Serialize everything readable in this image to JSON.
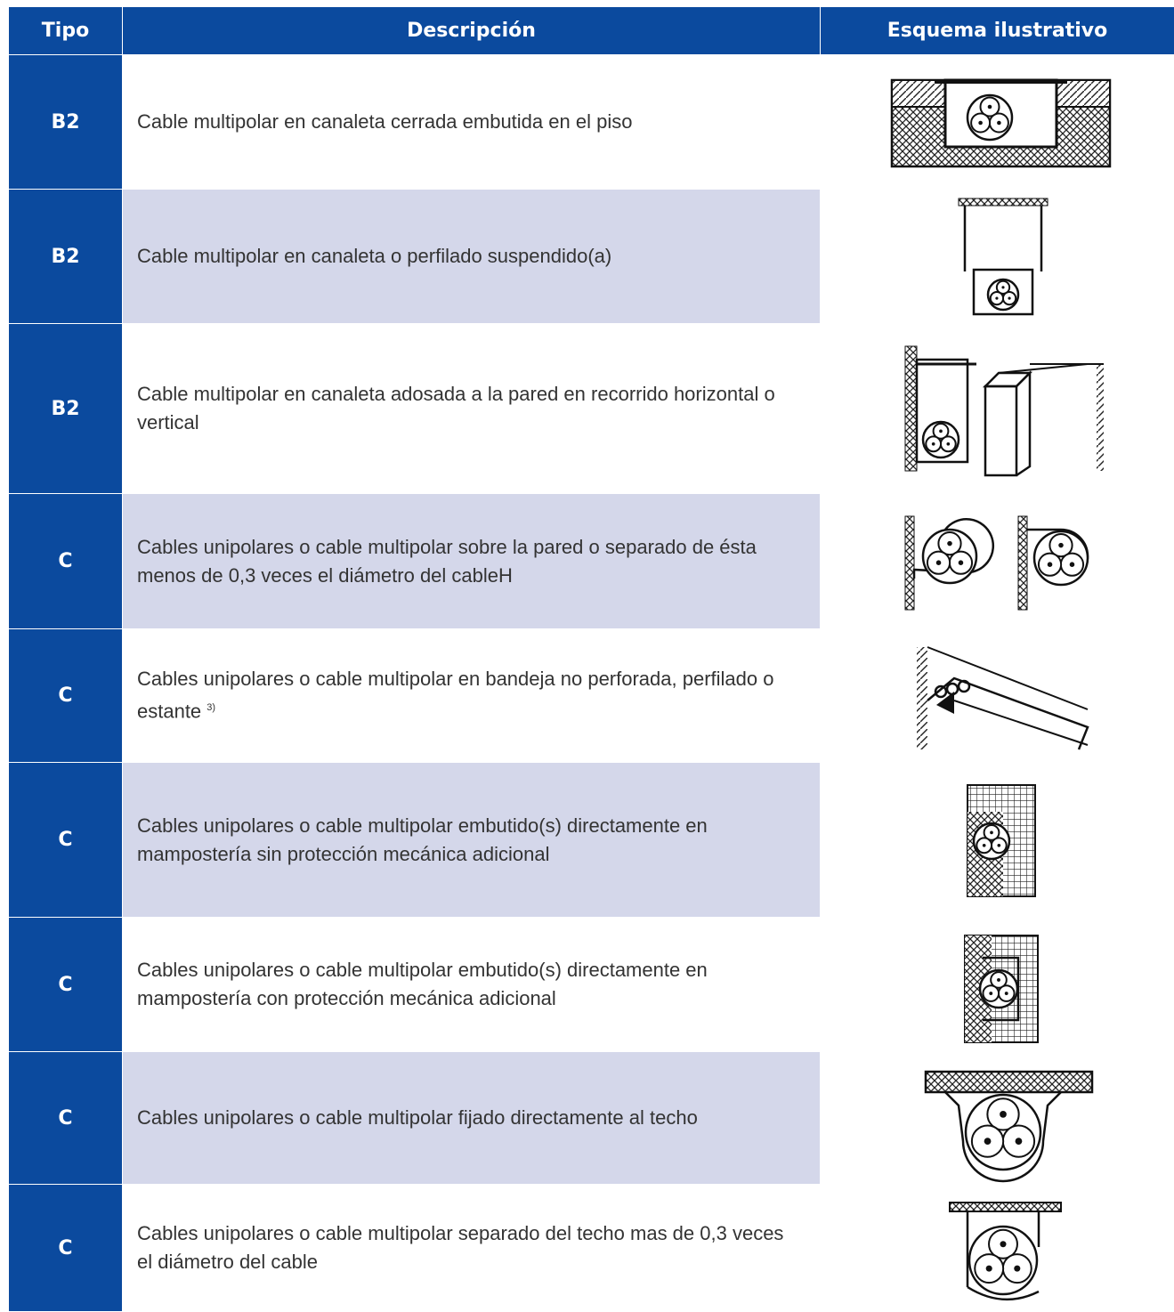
{
  "table": {
    "headers": [
      "Tipo",
      "Descripción",
      "Esquema ilustrativo"
    ],
    "rows": [
      {
        "tipo": "B2",
        "descripcion": "Cable multipolar en canaleta cerrada embutida en el piso"
      },
      {
        "tipo": "B2",
        "descripcion": "Cable multipolar en canaleta o perfilado suspendido(a)"
      },
      {
        "tipo": "B2",
        "descripcion": "Cable multipolar en canaleta adosada a la pared en recorrido horizontal o vertical"
      },
      {
        "tipo": "C",
        "descripcion": "Cables unipolares o cable multipolar sobre la pared o separado de ésta menos de 0,3 veces el diámetro del cableH"
      },
      {
        "tipo": "C",
        "descripcion": "Cables unipolares o cable multipolar en bandeja no perforada, perfilado o estante",
        "nota": "3)"
      },
      {
        "tipo": "C",
        "descripcion": "Cables unipolares o cable multipolar embutido(s) directamente en mampostería sin protección mecánica adicional"
      },
      {
        "tipo": "C",
        "descripcion": "Cables unipolares o cable multipolar embutido(s) directamente en mampostería con protección mecánica adicional"
      },
      {
        "tipo": "C",
        "descripcion": "Cables unipolares o cable multipolar fijado directamente al techo"
      },
      {
        "tipo": "C",
        "descripcion": "Cables unipolares o cable multipolar separado del techo mas de 0,3 veces el diámetro del cable"
      }
    ]
  }
}
